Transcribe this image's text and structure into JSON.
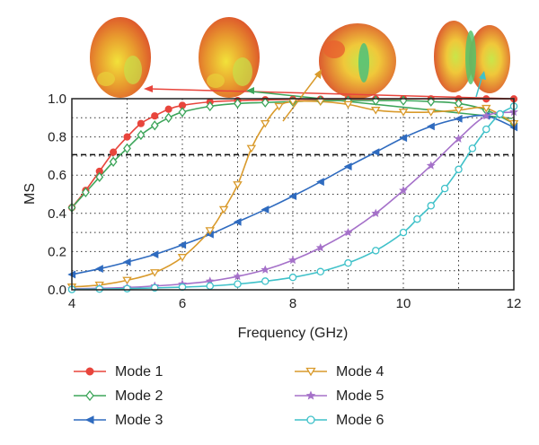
{
  "chart_data": {
    "type": "line",
    "title": "",
    "xlabel": "Frequency (GHz)",
    "ylabel": "MS",
    "xlim": [
      4,
      12
    ],
    "ylim": [
      0,
      1.0
    ],
    "xticks": [
      "4",
      "6",
      "8",
      "10",
      "12"
    ],
    "yticks": [
      "0.0",
      "0.2",
      "0.4",
      "0.6",
      "0.8",
      "1.0"
    ],
    "grid": "dotted",
    "reference_line": {
      "y": 0.707,
      "style": "dashed"
    },
    "legend_position": "bottom, two columns",
    "pattern_thumbnails": "3D radiation pattern insets above plot, with arrows pointing to Mode 1, Mode 2, Mode 4 and Mode 6 curves",
    "series": [
      {
        "name": "Mode 1",
        "color": "#e8453c",
        "marker": "circle-filled",
        "x": [
          4,
          4.25,
          4.5,
          4.75,
          5,
          5.25,
          5.5,
          5.75,
          6,
          6.5,
          7,
          7.5,
          8,
          8.5,
          9,
          9.5,
          10,
          10.5,
          11,
          11.5,
          12
        ],
        "y": [
          0.43,
          0.52,
          0.62,
          0.72,
          0.8,
          0.87,
          0.91,
          0.945,
          0.965,
          0.983,
          0.99,
          0.994,
          0.996,
          0.997,
          0.998,
          0.998,
          0.999,
          0.999,
          0.999,
          0.999,
          0.999
        ]
      },
      {
        "name": "Mode 2",
        "color": "#3da55a",
        "marker": "diamond-open",
        "x": [
          4,
          4.25,
          4.5,
          4.75,
          5,
          5.25,
          5.5,
          5.75,
          6,
          6.5,
          7,
          7.5,
          8,
          8.5,
          9,
          9.5,
          10,
          10.5,
          11,
          11.5,
          12
        ],
        "y": [
          0.43,
          0.51,
          0.59,
          0.67,
          0.74,
          0.81,
          0.86,
          0.9,
          0.93,
          0.96,
          0.975,
          0.98,
          0.985,
          0.99,
          0.99,
          0.99,
          0.99,
          0.985,
          0.975,
          0.94,
          0.87
        ]
      },
      {
        "name": "Mode 3",
        "color": "#2f6bbf",
        "marker": "triangle-left-filled",
        "x": [
          4,
          4.5,
          5,
          5.5,
          6,
          6.5,
          7,
          7.5,
          8,
          8.5,
          9,
          9.5,
          10,
          10.5,
          11,
          11.5,
          12
        ],
        "y": [
          0.08,
          0.11,
          0.145,
          0.185,
          0.235,
          0.29,
          0.355,
          0.42,
          0.49,
          0.565,
          0.645,
          0.72,
          0.795,
          0.855,
          0.895,
          0.91,
          0.85
        ]
      },
      {
        "name": "Mode 4",
        "color": "#d99a2b",
        "marker": "triangle-down-open",
        "x": [
          4,
          4.5,
          5,
          5.5,
          6,
          6.5,
          6.75,
          7,
          7.25,
          7.5,
          7.75,
          8,
          8.5,
          9,
          9.5,
          10,
          10.5,
          11,
          11.5,
          12
        ],
        "y": [
          0.015,
          0.025,
          0.05,
          0.09,
          0.17,
          0.31,
          0.42,
          0.55,
          0.74,
          0.87,
          0.96,
          0.985,
          0.985,
          0.97,
          0.94,
          0.93,
          0.93,
          0.94,
          0.95,
          0.87
        ]
      },
      {
        "name": "Mode 5",
        "color": "#a571c9",
        "marker": "star-filled",
        "x": [
          4,
          4.5,
          5,
          5.5,
          6,
          6.5,
          7,
          7.5,
          8,
          8.5,
          9,
          9.5,
          10,
          10.5,
          11,
          11.5,
          12
        ],
        "y": [
          0.005,
          0.008,
          0.012,
          0.02,
          0.03,
          0.045,
          0.07,
          0.105,
          0.155,
          0.22,
          0.3,
          0.4,
          0.52,
          0.65,
          0.79,
          0.91,
          0.93
        ]
      },
      {
        "name": "Mode 6",
        "color": "#3fc1c9",
        "marker": "circle-open",
        "x": [
          4,
          4.5,
          5,
          5.5,
          6,
          6.5,
          7,
          7.5,
          8,
          8.5,
          9,
          9.5,
          10,
          10.25,
          10.5,
          10.75,
          11,
          11.25,
          11.5,
          11.75,
          12
        ],
        "y": [
          0.002,
          0.004,
          0.006,
          0.01,
          0.014,
          0.02,
          0.03,
          0.045,
          0.065,
          0.095,
          0.14,
          0.205,
          0.3,
          0.37,
          0.44,
          0.53,
          0.63,
          0.74,
          0.84,
          0.92,
          0.96
        ]
      }
    ]
  }
}
